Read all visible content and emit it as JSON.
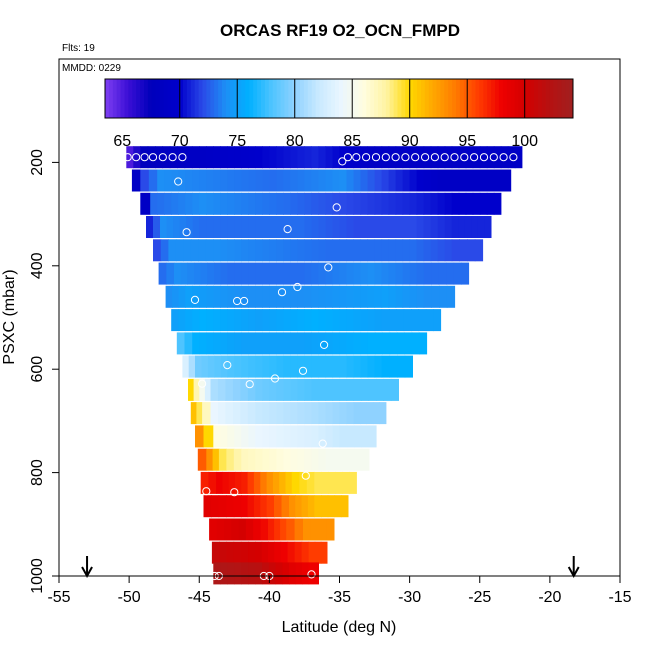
{
  "chart_data": {
    "type": "heatmap",
    "title": "ORCAS RF19 O2_OCN_FMPD",
    "flights_label": "Flts: 19",
    "date_label": "MMDD: 0229",
    "xlabel": "Latitude (deg N)",
    "ylabel": "PSXC (mbar)",
    "xlim": [
      -55,
      -15
    ],
    "ylim": [
      1000,
      0
    ],
    "x_ticks": [
      -55,
      -50,
      -45,
      -40,
      -35,
      -30,
      -25,
      -20,
      -15
    ],
    "y_ticks": [
      200,
      400,
      600,
      800,
      1000
    ],
    "colorbar": {
      "min": 63.5,
      "max": 104.2,
      "ticks": [
        65,
        70,
        75,
        80,
        85,
        90,
        95,
        100
      ],
      "divisions": [
        70,
        75,
        80,
        85,
        90,
        95,
        100
      ],
      "stops": [
        {
          "v": 63.5,
          "c": "#7f3ff2"
        },
        {
          "v": 65.5,
          "c": "#3b0fd6"
        },
        {
          "v": 67.5,
          "c": "#0000bb"
        },
        {
          "v": 70.0,
          "c": "#0000cc"
        },
        {
          "v": 72.0,
          "c": "#2a4ae8"
        },
        {
          "v": 74.0,
          "c": "#1d8ff5"
        },
        {
          "v": 76.0,
          "c": "#00b0ff"
        },
        {
          "v": 78.0,
          "c": "#4ec4ff"
        },
        {
          "v": 80.0,
          "c": "#8fd2ff"
        },
        {
          "v": 82.0,
          "c": "#c7e9ff"
        },
        {
          "v": 84.0,
          "c": "#eaf6ff"
        },
        {
          "v": 86.0,
          "c": "#fffde0"
        },
        {
          "v": 88.0,
          "c": "#fff3a0"
        },
        {
          "v": 90.0,
          "c": "#ffd800"
        },
        {
          "v": 92.0,
          "c": "#ffa800"
        },
        {
          "v": 94.0,
          "c": "#ff7a00"
        },
        {
          "v": 96.0,
          "c": "#ff3c00"
        },
        {
          "v": 98.0,
          "c": "#ee0000"
        },
        {
          "v": 100.0,
          "c": "#d40000"
        },
        {
          "v": 102.0,
          "c": "#b81010"
        },
        {
          "v": 104.2,
          "c": "#a02020"
        }
      ]
    },
    "arrows_lat": [
      -53,
      -18.3
    ],
    "rows": [
      {
        "p": 190,
        "lat_min": -50.2,
        "lat_max": -22.0,
        "segments": [
          {
            "lat": -50.2,
            "v": 65
          },
          {
            "lat": -49.2,
            "v": 68
          },
          {
            "lat": -45,
            "v": 69
          },
          {
            "lat": -37,
            "v": 71
          },
          {
            "lat": -35,
            "v": 70
          },
          {
            "lat": -33,
            "v": 69
          }
        ]
      },
      {
        "p": 235,
        "lat_min": -49.8,
        "lat_max": -22.8,
        "segments": [
          {
            "lat": -49.8,
            "v": 69
          },
          {
            "lat": -49.2,
            "v": 72
          },
          {
            "lat": -48,
            "v": 74
          },
          {
            "lat": -40,
            "v": 73
          },
          {
            "lat": -35,
            "v": 74
          },
          {
            "lat": -31,
            "v": 71
          },
          {
            "lat": -28,
            "v": 69
          }
        ]
      },
      {
        "p": 280,
        "lat_min": -49.2,
        "lat_max": -23.5,
        "segments": [
          {
            "lat": -49.2,
            "v": 69
          },
          {
            "lat": -48.5,
            "v": 73
          },
          {
            "lat": -45,
            "v": 74
          },
          {
            "lat": -39,
            "v": 73
          },
          {
            "lat": -35,
            "v": 72
          },
          {
            "lat": -30,
            "v": 71
          },
          {
            "lat": -27,
            "v": 70
          }
        ]
      },
      {
        "p": 325,
        "lat_min": -48.8,
        "lat_max": -24.2,
        "segments": [
          {
            "lat": -48.8,
            "v": 71
          },
          {
            "lat": -47.8,
            "v": 74
          },
          {
            "lat": -45,
            "v": 73
          },
          {
            "lat": -38,
            "v": 73
          },
          {
            "lat": -34,
            "v": 72
          },
          {
            "lat": -30,
            "v": 72
          },
          {
            "lat": -27,
            "v": 71
          }
        ]
      },
      {
        "p": 370,
        "lat_min": -48.3,
        "lat_max": -24.8,
        "segments": [
          {
            "lat": -48.3,
            "v": 72
          },
          {
            "lat": -47.2,
            "v": 74
          },
          {
            "lat": -44,
            "v": 74
          },
          {
            "lat": -36,
            "v": 73
          },
          {
            "lat": -30,
            "v": 73
          },
          {
            "lat": -27,
            "v": 72
          }
        ]
      },
      {
        "p": 415,
        "lat_min": -47.9,
        "lat_max": -25.8,
        "segments": [
          {
            "lat": -47.9,
            "v": 73
          },
          {
            "lat": -46.8,
            "v": 74
          },
          {
            "lat": -43,
            "v": 73
          },
          {
            "lat": -38,
            "v": 73
          },
          {
            "lat": -33,
            "v": 74
          },
          {
            "lat": -29,
            "v": 73
          }
        ]
      },
      {
        "p": 460,
        "lat_min": -47.4,
        "lat_max": -26.8,
        "segments": [
          {
            "lat": -47.4,
            "v": 74
          },
          {
            "lat": -46,
            "v": 75
          },
          {
            "lat": -42,
            "v": 74
          },
          {
            "lat": -38,
            "v": 74
          },
          {
            "lat": -32,
            "v": 75
          },
          {
            "lat": -29,
            "v": 74
          }
        ]
      },
      {
        "p": 505,
        "lat_min": -47.0,
        "lat_max": -27.8,
        "segments": [
          {
            "lat": -47.0,
            "v": 75
          },
          {
            "lat": -45,
            "v": 76
          },
          {
            "lat": -41,
            "v": 75
          },
          {
            "lat": -37,
            "v": 76
          },
          {
            "lat": -32,
            "v": 75
          }
        ]
      },
      {
        "p": 550,
        "lat_min": -46.6,
        "lat_max": -28.8,
        "segments": [
          {
            "lat": -46.6,
            "v": 78
          },
          {
            "lat": -45.5,
            "v": 76
          },
          {
            "lat": -42,
            "v": 75
          },
          {
            "lat": -38,
            "v": 75
          },
          {
            "lat": -33,
            "v": 76
          }
        ]
      },
      {
        "p": 595,
        "lat_min": -46.2,
        "lat_max": -29.8,
        "segments": [
          {
            "lat": -46.2,
            "v": 83
          },
          {
            "lat": -45.3,
            "v": 79
          },
          {
            "lat": -43,
            "v": 78
          },
          {
            "lat": -39,
            "v": 77
          },
          {
            "lat": -35,
            "v": 77
          },
          {
            "lat": -32,
            "v": 76
          }
        ]
      },
      {
        "p": 640,
        "lat_min": -45.8,
        "lat_max": -30.8,
        "segments": [
          {
            "lat": -45.8,
            "v": 90
          },
          {
            "lat": -45.0,
            "v": 85
          },
          {
            "lat": -44.2,
            "v": 81
          },
          {
            "lat": -41,
            "v": 79
          },
          {
            "lat": -37,
            "v": 78
          },
          {
            "lat": -34,
            "v": 78
          }
        ]
      },
      {
        "p": 685,
        "lat_min": -45.6,
        "lat_max": -31.7,
        "segments": [
          {
            "lat": -45.6,
            "v": 91
          },
          {
            "lat": -44.8,
            "v": 87
          },
          {
            "lat": -44.2,
            "v": 84
          },
          {
            "lat": -41,
            "v": 82
          },
          {
            "lat": -37,
            "v": 81
          },
          {
            "lat": -34,
            "v": 80
          }
        ]
      },
      {
        "p": 730,
        "lat_min": -45.3,
        "lat_max": -32.4,
        "segments": [
          {
            "lat": -45.3,
            "v": 93
          },
          {
            "lat": -44.7,
            "v": 90
          },
          {
            "lat": -44.0,
            "v": 86
          },
          {
            "lat": -41,
            "v": 84
          },
          {
            "lat": -37,
            "v": 83
          },
          {
            "lat": -35,
            "v": 82
          }
        ]
      },
      {
        "p": 775,
        "lat_min": -45.1,
        "lat_max": -32.9,
        "segments": [
          {
            "lat": -45.1,
            "v": 95
          },
          {
            "lat": -44.5,
            "v": 93
          },
          {
            "lat": -43.6,
            "v": 89
          },
          {
            "lat": -42,
            "v": 87
          },
          {
            "lat": -39,
            "v": 86
          },
          {
            "lat": -36,
            "v": 85
          }
        ]
      },
      {
        "p": 820,
        "lat_min": -44.9,
        "lat_max": -33.8,
        "segments": [
          {
            "lat": -44.9,
            "v": 97
          },
          {
            "lat": -43.8,
            "v": 98
          },
          {
            "lat": -42,
            "v": 97
          },
          {
            "lat": -40.2,
            "v": 93
          },
          {
            "lat": -38.4,
            "v": 90
          },
          {
            "lat": -36.8,
            "v": 89
          }
        ]
      },
      {
        "p": 865,
        "lat_min": -44.7,
        "lat_max": -34.4,
        "segments": [
          {
            "lat": -44.7,
            "v": 99
          },
          {
            "lat": -42,
            "v": 98
          },
          {
            "lat": -40.2,
            "v": 96
          },
          {
            "lat": -38.6,
            "v": 93
          },
          {
            "lat": -36.8,
            "v": 91
          }
        ]
      },
      {
        "p": 910,
        "lat_min": -44.3,
        "lat_max": -35.4,
        "segments": [
          {
            "lat": -44.3,
            "v": 99
          },
          {
            "lat": -42.2,
            "v": 100
          },
          {
            "lat": -40.1,
            "v": 97
          },
          {
            "lat": -38.8,
            "v": 95
          },
          {
            "lat": -37.6,
            "v": 93
          }
        ]
      },
      {
        "p": 955,
        "lat_min": -44.1,
        "lat_max": -35.9,
        "segments": [
          {
            "lat": -44.1,
            "v": 101
          },
          {
            "lat": -41,
            "v": 100
          },
          {
            "lat": -39.2,
            "v": 98
          },
          {
            "lat": -38.2,
            "v": 97
          },
          {
            "lat": -37.2,
            "v": 96
          }
        ]
      },
      {
        "p": 995,
        "lat_min": -44.0,
        "lat_max": -36.5,
        "segments": [
          {
            "lat": -44.0,
            "v": 103
          },
          {
            "lat": -41,
            "v": 102
          },
          {
            "lat": -38.6,
            "v": 99
          },
          {
            "lat": -37.2,
            "v": 98
          }
        ]
      }
    ],
    "circles": [
      {
        "lat": -50.1,
        "p": 190
      },
      {
        "lat": -49.5,
        "p": 190
      },
      {
        "lat": -48.9,
        "p": 190
      },
      {
        "lat": -48.3,
        "p": 190
      },
      {
        "lat": -47.6,
        "p": 190
      },
      {
        "lat": -46.9,
        "p": 190
      },
      {
        "lat": -46.2,
        "p": 190
      },
      {
        "lat": -34.8,
        "p": 198
      },
      {
        "lat": -34.4,
        "p": 190
      },
      {
        "lat": -33.8,
        "p": 190
      },
      {
        "lat": -33.1,
        "p": 190
      },
      {
        "lat": -32.4,
        "p": 190
      },
      {
        "lat": -31.7,
        "p": 190
      },
      {
        "lat": -31.0,
        "p": 190
      },
      {
        "lat": -30.3,
        "p": 190
      },
      {
        "lat": -29.6,
        "p": 190
      },
      {
        "lat": -28.9,
        "p": 190
      },
      {
        "lat": -28.2,
        "p": 190
      },
      {
        "lat": -27.5,
        "p": 190
      },
      {
        "lat": -26.8,
        "p": 190
      },
      {
        "lat": -26.1,
        "p": 190
      },
      {
        "lat": -25.4,
        "p": 190
      },
      {
        "lat": -24.7,
        "p": 190
      },
      {
        "lat": -24.0,
        "p": 190
      },
      {
        "lat": -23.3,
        "p": 190
      },
      {
        "lat": -22.6,
        "p": 190
      },
      {
        "lat": -46.5,
        "p": 237
      },
      {
        "lat": -35.2,
        "p": 287
      },
      {
        "lat": -38.7,
        "p": 329
      },
      {
        "lat": -45.9,
        "p": 335
      },
      {
        "lat": -35.8,
        "p": 403
      },
      {
        "lat": -38.0,
        "p": 441
      },
      {
        "lat": -39.1,
        "p": 451
      },
      {
        "lat": -45.3,
        "p": 466
      },
      {
        "lat": -42.3,
        "p": 468
      },
      {
        "lat": -41.8,
        "p": 468
      },
      {
        "lat": -36.1,
        "p": 553
      },
      {
        "lat": -43.0,
        "p": 592
      },
      {
        "lat": -37.6,
        "p": 603
      },
      {
        "lat": -39.6,
        "p": 618
      },
      {
        "lat": -44.8,
        "p": 628
      },
      {
        "lat": -41.4,
        "p": 629
      },
      {
        "lat": -36.2,
        "p": 744
      },
      {
        "lat": -37.4,
        "p": 806
      },
      {
        "lat": -44.5,
        "p": 836
      },
      {
        "lat": -42.5,
        "p": 838
      },
      {
        "lat": -43.9,
        "p": 1000
      },
      {
        "lat": -43.6,
        "p": 1000
      },
      {
        "lat": -40.4,
        "p": 1000
      },
      {
        "lat": -40.0,
        "p": 1000
      },
      {
        "lat": -37.0,
        "p": 997
      }
    ]
  }
}
